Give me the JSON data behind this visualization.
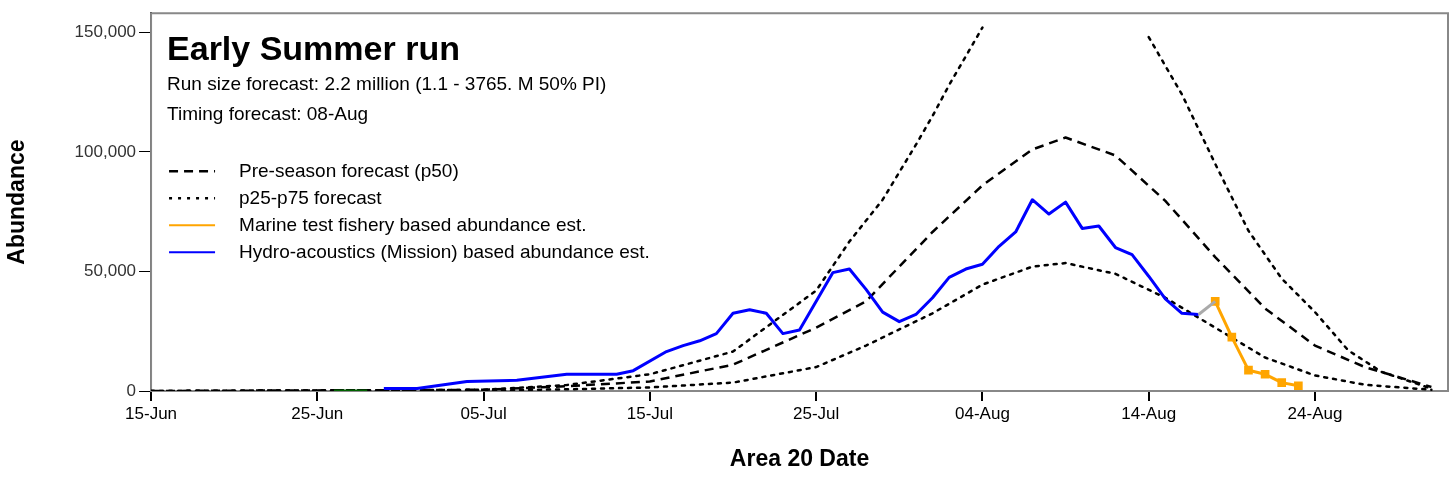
{
  "chart_data": {
    "type": "line",
    "title": "Early Summer run",
    "subtitle": "Run size forecast: 2.2 million (1.1 - 3765. M 50% PI)",
    "annotations": [
      "Timing forecast: 08-Aug"
    ],
    "xlabel": "Area 20 Date",
    "ylabel": "Abundance",
    "xlim": [
      "--06-15",
      "--09-01"
    ],
    "ylim": [
      0,
      158000
    ],
    "xticks": [
      {
        "value": "--06-15",
        "label": "15-Jun"
      },
      {
        "value": "--06-25",
        "label": "25-Jun"
      },
      {
        "value": "--07-05",
        "label": "05-Jul"
      },
      {
        "value": "--07-15",
        "label": "15-Jul"
      },
      {
        "value": "--07-25",
        "label": "25-Jul"
      },
      {
        "value": "--08-04",
        "label": "04-Aug"
      },
      {
        "value": "--08-14",
        "label": "14-Aug"
      },
      {
        "value": "--08-24",
        "label": "24-Aug"
      }
    ],
    "yticks": [
      {
        "value": 0,
        "label": "0"
      },
      {
        "value": 50000,
        "label": "50,000"
      },
      {
        "value": 100000,
        "label": "100,000"
      },
      {
        "value": 150000,
        "label": "150,000"
      }
    ],
    "grid": false,
    "legend": "left",
    "series": [
      {
        "name": "Pre-season forecast (p50)",
        "color": "#000000",
        "line_style": "dashed",
        "marker": "none",
        "x": [
          "--06-15",
          "--07-05",
          "--07-10",
          "--07-15",
          "--07-20",
          "--07-25",
          "--07-28",
          "--08-01",
          "--08-04",
          "--08-07",
          "--08-09",
          "--08-12",
          "--08-15",
          "--08-18",
          "--08-21",
          "--08-24",
          "--08-27",
          "--08-31"
        ],
        "values": [
          0,
          500,
          2000,
          4000,
          11000,
          26500,
          37500,
          66500,
          86000,
          101000,
          106000,
          98500,
          79500,
          56000,
          34500,
          19000,
          10000,
          1700
        ]
      },
      {
        "name": "p25-p75 forecast",
        "color": "#000000",
        "line_style": "dotted",
        "marker": "none",
        "x": [
          "--06-15",
          "--07-05",
          "--07-10",
          "--07-15",
          "--07-20",
          "--07-25",
          "--07-28",
          "--08-01",
          "--08-04",
          "--08-07",
          "--08-09",
          "--08-12",
          "--08-15",
          "--08-18",
          "--08-21",
          "--08-24",
          "--08-27",
          "--08-31"
        ],
        "values": [
          0,
          200,
          700,
          1500,
          3500,
          10000,
          19000,
          32500,
          44500,
          52000,
          53500,
          49000,
          39000,
          26500,
          14000,
          6500,
          2600,
          500
        ]
      },
      {
        "color": "#000000",
        "line_style": "dotted",
        "marker": "none",
        "x": [
          "--06-15",
          "--07-05",
          "--07-10",
          "--07-15",
          "--07-20",
          "--07-25",
          "--07-27",
          "--07-29",
          "--07-31",
          "--08-01",
          "--08-02",
          "--08-03",
          "--08-04",
          "--08-05",
          "--08-13",
          "--08-14",
          "--08-16",
          "--08-18",
          "--08-20",
          "--08-22",
          "--08-24",
          "--08-26",
          "--08-28",
          "--08-31"
        ],
        "values": [
          0,
          500,
          2500,
          7000,
          16500,
          42000,
          62500,
          80000,
          103000,
          115000,
          128000,
          140000,
          152000,
          null,
          null,
          148000,
          124000,
          95000,
          67000,
          47000,
          33000,
          17000,
          8000,
          1000
        ]
      },
      {
        "color": "#006400",
        "line_style": "solid",
        "marker": "none",
        "x": [
          "--06-26",
          "--06-27",
          "--06-28"
        ],
        "values": [
          0,
          0,
          0
        ]
      },
      {
        "name": "Marine test fishery based abundance est.",
        "color": "#ffa500",
        "line_style": "solid",
        "marker": "square",
        "x": [
          "--08-18",
          "--08-19",
          "--08-20",
          "--08-21",
          "--08-22",
          "--08-23"
        ],
        "values": [
          37500,
          22500,
          8700,
          7000,
          3500,
          2200
        ]
      },
      {
        "name": "Hydro-acoustics (Mission) based abundance est.",
        "color": "#0000ff",
        "line_style": "solid",
        "marker": "none",
        "x": [
          "--06-29",
          "--07-01",
          "--07-04",
          "--07-07",
          "--07-10",
          "--07-13",
          "--07-14",
          "--07-16",
          "--07-17",
          "--07-18",
          "--07-19",
          "--07-20",
          "--07-21",
          "--07-22",
          "--07-23",
          "--07-24",
          "--07-26",
          "--07-27",
          "--07-28",
          "--07-29",
          "--07-30",
          "--07-31",
          "--08-01",
          "--08-02",
          "--08-03",
          "--08-04",
          "--08-05",
          "--08-06",
          "--08-07",
          "--08-08",
          "--08-09",
          "--08-10",
          "--08-11",
          "--08-12",
          "--08-13",
          "--08-14",
          "--08-15",
          "--08-16",
          "--08-17"
        ],
        "values": [
          1000,
          1000,
          4000,
          4500,
          7000,
          7000,
          8500,
          16500,
          19000,
          21000,
          24000,
          32500,
          34000,
          32500,
          24000,
          25500,
          49500,
          51000,
          42500,
          33000,
          29000,
          32000,
          39000,
          47500,
          51000,
          53000,
          60500,
          66500,
          80000,
          74000,
          79000,
          68000,
          69000,
          60000,
          57000,
          48000,
          38500,
          32500,
          32000
        ]
      },
      {
        "color": "#aaaaaa",
        "line_style": "solid",
        "marker": "none",
        "x": [
          "--08-17",
          "--08-18"
        ],
        "values": [
          32000,
          37500
        ]
      }
    ]
  }
}
